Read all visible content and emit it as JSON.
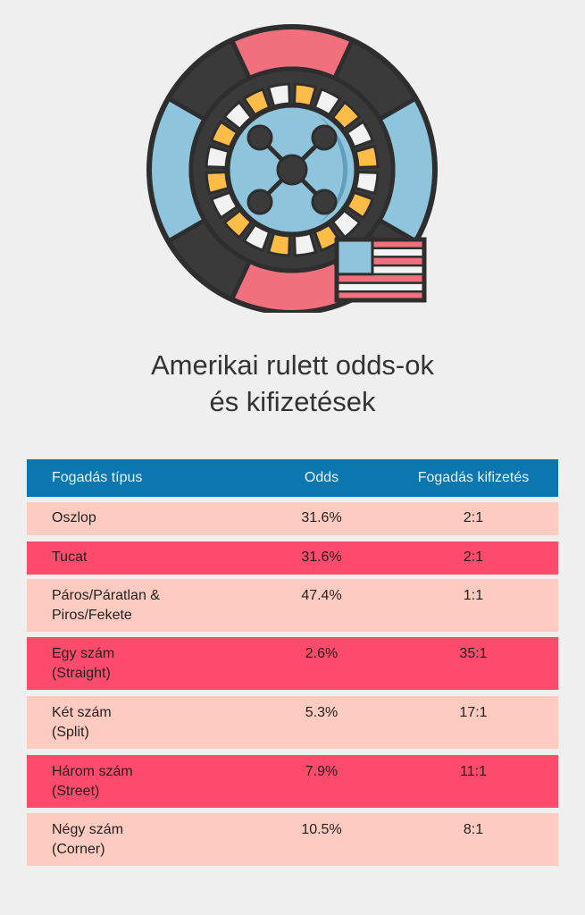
{
  "colors": {
    "background": "#efefef",
    "header": "#0a77b0",
    "row_light": "#fdcbc0",
    "row_dark": "#fe4a6b"
  },
  "illustration": {
    "icon": "roulette-wheel-icon",
    "flag": "usa-flag-icon"
  },
  "title": {
    "line1": "Amerikai rulett odds-ok",
    "line2": "és kifizetések"
  },
  "table": {
    "headers": [
      "Fogadás típus",
      "Odds",
      "Fogadás kifizetés"
    ],
    "rows": [
      {
        "bet": "Oszlop",
        "odds": "31.6%",
        "payout": "2:1"
      },
      {
        "bet": "Tucat",
        "odds": "31.6%",
        "payout": "2:1"
      },
      {
        "bet": "Páros/Páratlan &\nPiros/Fekete",
        "odds": "47.4%",
        "payout": "1:1"
      },
      {
        "bet": "Egy szám\n(Straight)",
        "odds": "2.6%",
        "payout": "35:1"
      },
      {
        "bet": "Két szám\n(Split)",
        "odds": "5.3%",
        "payout": "17:1"
      },
      {
        "bet": "Három szám\n(Street)",
        "odds": "7.9%",
        "payout": "11:1"
      },
      {
        "bet": "Négy szám\n(Corner)",
        "odds": "10.5%",
        "payout": "8:1"
      }
    ]
  }
}
